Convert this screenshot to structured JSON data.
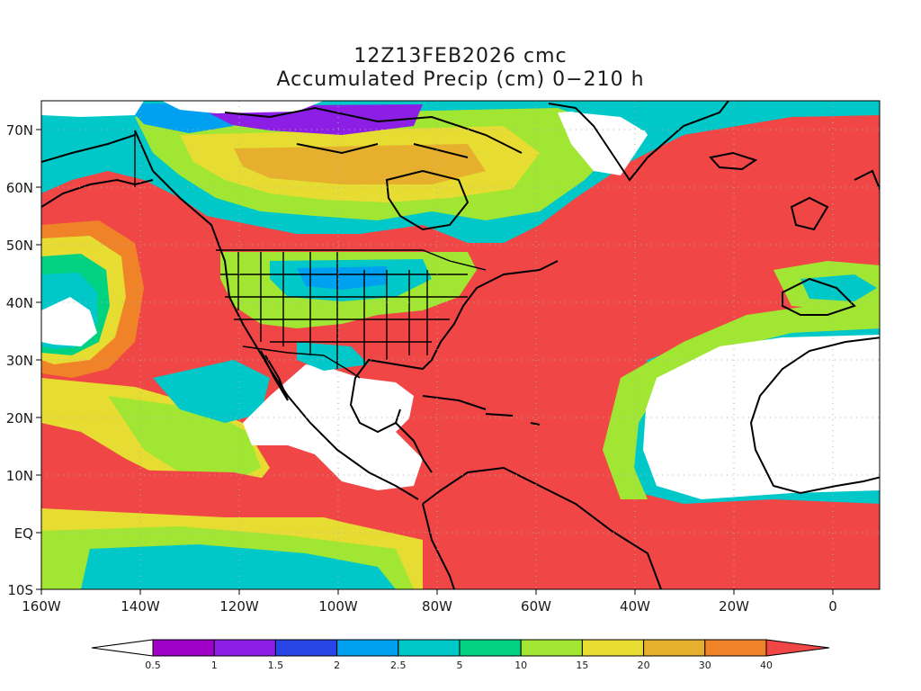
{
  "title_line1": "12Z13FEB2026 cmc",
  "title_line2": "Accumulated Precip (cm) 0−210 h",
  "lat_labels": [
    "70N",
    "60N",
    "50N",
    "40N",
    "30N",
    "20N",
    "10N",
    "EQ",
    "10S"
  ],
  "lon_labels": [
    "160W",
    "140W",
    "120W",
    "100W",
    "80W",
    "60W",
    "40W",
    "20W",
    "0"
  ],
  "colorbar": {
    "labels": [
      "0.5",
      "1",
      "1.5",
      "2",
      "2.5",
      "5",
      "10",
      "15",
      "20",
      "30",
      "40"
    ],
    "colors": [
      "#a000c8",
      "#8c1ee6",
      "#2a45e6",
      "#00a0f0",
      "#00c8c8",
      "#00d282",
      "#a0e632",
      "#e6dc32",
      "#e6af2d",
      "#f08228",
      "#f04646"
    ]
  },
  "colors": {
    "zero": "#ffffff",
    "heavy": "#f04646",
    "orange": "#f08228",
    "gold": "#e6af2d",
    "yellow": "#e6dc32",
    "lightgreen": "#a0e632",
    "green": "#00d282",
    "cyan": "#00c8c8",
    "blue": "#00a0f0",
    "purple": "#a000c8",
    "coast": "#000000"
  }
}
